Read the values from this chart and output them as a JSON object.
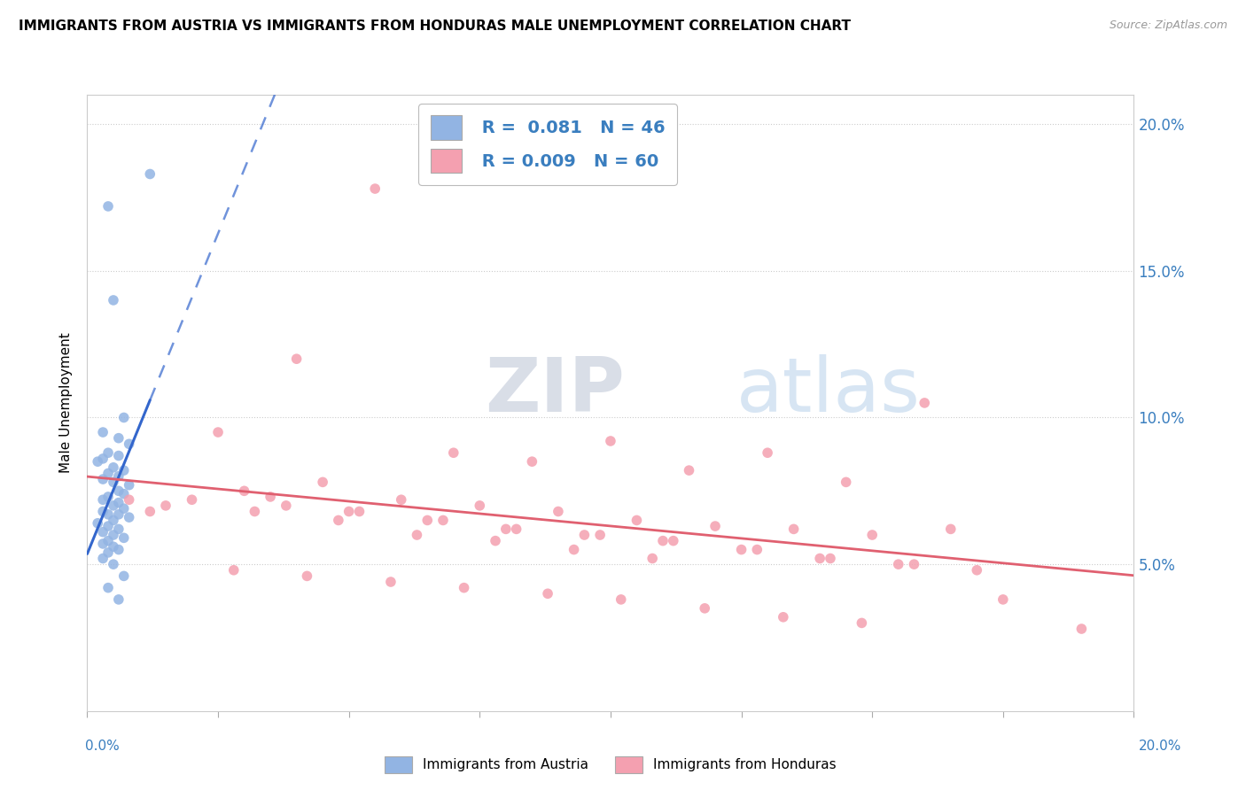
{
  "title": "IMMIGRANTS FROM AUSTRIA VS IMMIGRANTS FROM HONDURAS MALE UNEMPLOYMENT CORRELATION CHART",
  "source_text": "Source: ZipAtlas.com",
  "ylabel": "Male Unemployment",
  "xlim": [
    0.0,
    0.2
  ],
  "ylim": [
    0.0,
    0.21
  ],
  "yticks": [
    0.05,
    0.1,
    0.15,
    0.2
  ],
  "ytick_labels": [
    "5.0%",
    "10.0%",
    "15.0%",
    "20.0%"
  ],
  "austria_color": "#92b4e3",
  "honduras_color": "#f4a0b0",
  "austria_line_color": "#3366cc",
  "honduras_line_color": "#e06070",
  "austria_R": 0.081,
  "austria_N": 46,
  "honduras_R": 0.009,
  "honduras_N": 60,
  "austria_scatter_x": [
    0.004,
    0.012,
    0.005,
    0.007,
    0.003,
    0.006,
    0.008,
    0.004,
    0.006,
    0.003,
    0.002,
    0.005,
    0.007,
    0.004,
    0.006,
    0.003,
    0.005,
    0.008,
    0.006,
    0.007,
    0.004,
    0.003,
    0.006,
    0.005,
    0.007,
    0.003,
    0.004,
    0.006,
    0.008,
    0.005,
    0.002,
    0.004,
    0.006,
    0.003,
    0.005,
    0.007,
    0.004,
    0.003,
    0.005,
    0.006,
    0.004,
    0.003,
    0.005,
    0.007,
    0.004,
    0.006
  ],
  "austria_scatter_y": [
    0.172,
    0.183,
    0.14,
    0.1,
    0.095,
    0.093,
    0.091,
    0.088,
    0.087,
    0.086,
    0.085,
    0.083,
    0.082,
    0.081,
    0.08,
    0.079,
    0.078,
    0.077,
    0.075,
    0.074,
    0.073,
    0.072,
    0.071,
    0.07,
    0.069,
    0.068,
    0.067,
    0.067,
    0.066,
    0.065,
    0.064,
    0.063,
    0.062,
    0.061,
    0.06,
    0.059,
    0.058,
    0.057,
    0.056,
    0.055,
    0.054,
    0.052,
    0.05,
    0.046,
    0.042,
    0.038
  ],
  "honduras_scatter_x": [
    0.008,
    0.055,
    0.012,
    0.025,
    0.04,
    0.07,
    0.085,
    0.1,
    0.115,
    0.13,
    0.145,
    0.16,
    0.03,
    0.045,
    0.06,
    0.075,
    0.09,
    0.105,
    0.12,
    0.135,
    0.15,
    0.165,
    0.035,
    0.05,
    0.065,
    0.08,
    0.095,
    0.11,
    0.125,
    0.14,
    0.155,
    0.17,
    0.02,
    0.038,
    0.052,
    0.068,
    0.082,
    0.098,
    0.112,
    0.128,
    0.142,
    0.158,
    0.028,
    0.042,
    0.058,
    0.072,
    0.088,
    0.102,
    0.118,
    0.133,
    0.148,
    0.175,
    0.015,
    0.032,
    0.048,
    0.063,
    0.078,
    0.093,
    0.108,
    0.19
  ],
  "honduras_scatter_y": [
    0.072,
    0.178,
    0.068,
    0.095,
    0.12,
    0.088,
    0.085,
    0.092,
    0.082,
    0.088,
    0.078,
    0.105,
    0.075,
    0.078,
    0.072,
    0.07,
    0.068,
    0.065,
    0.063,
    0.062,
    0.06,
    0.062,
    0.073,
    0.068,
    0.065,
    0.062,
    0.06,
    0.058,
    0.055,
    0.052,
    0.05,
    0.048,
    0.072,
    0.07,
    0.068,
    0.065,
    0.062,
    0.06,
    0.058,
    0.055,
    0.052,
    0.05,
    0.048,
    0.046,
    0.044,
    0.042,
    0.04,
    0.038,
    0.035,
    0.032,
    0.03,
    0.038,
    0.07,
    0.068,
    0.065,
    0.06,
    0.058,
    0.055,
    0.052,
    0.028
  ],
  "watermark_zip": "ZIP",
  "watermark_atlas": "atlas",
  "background_color": "#ffffff",
  "grid_color": "#cccccc"
}
